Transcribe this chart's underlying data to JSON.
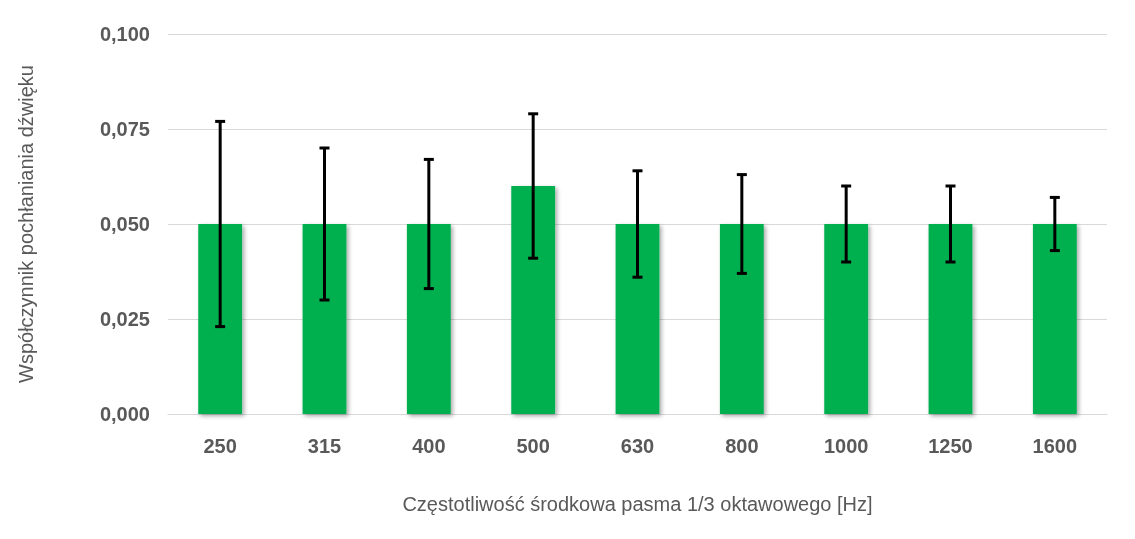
{
  "chart_data": {
    "type": "bar",
    "xlabel": "Częstotliwość środkowa pasma 1/3 oktawowego [Hz]",
    "ylabel": "Współczynnik pochłaniania dźwięku",
    "categories": [
      "250",
      "315",
      "400",
      "500",
      "630",
      "800",
      "1000",
      "1250",
      "1600"
    ],
    "values": [
      0.05,
      0.05,
      0.05,
      0.06,
      0.05,
      0.05,
      0.05,
      0.05,
      0.05
    ],
    "errors": [
      [
        0.023,
        0.077
      ],
      [
        0.03,
        0.07
      ],
      [
        0.033,
        0.067
      ],
      [
        0.041,
        0.079
      ],
      [
        0.036,
        0.064
      ],
      [
        0.037,
        0.063
      ],
      [
        0.04,
        0.06
      ],
      [
        0.04,
        0.06
      ],
      [
        0.043,
        0.057
      ]
    ],
    "color": "#00b050",
    "ylim": [
      0,
      0.1
    ],
    "yticks": [
      {
        "value": 0,
        "label": "0,000"
      },
      {
        "value": 0.025,
        "label": "0,025"
      },
      {
        "value": 0.05,
        "label": "0,050"
      },
      {
        "value": 0.075,
        "label": "0,075"
      },
      {
        "value": 0.1,
        "label": "0,100"
      }
    ],
    "grid": "y"
  }
}
